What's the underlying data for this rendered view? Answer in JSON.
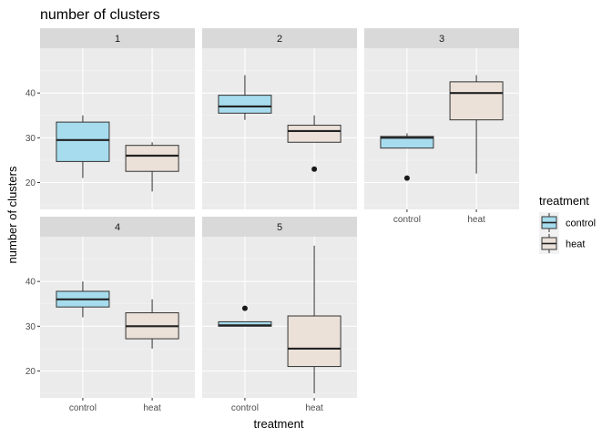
{
  "chart_data": {
    "type": "boxplot",
    "title": "number of clusters",
    "xlabel": "treatment",
    "ylabel": "number of clusters",
    "ylim": [
      14,
      50
    ],
    "yticks": [
      20,
      30,
      40
    ],
    "categories": [
      "control",
      "heat"
    ],
    "colors": {
      "control": "#a6dced",
      "heat": "#ebe1d9"
    },
    "legend": {
      "title": "treatment",
      "position": "right",
      "entries": [
        "control",
        "heat"
      ]
    },
    "facets": [
      {
        "label": "1",
        "boxes": [
          {
            "group": "control",
            "whisker_low": 21,
            "q1": 24.7,
            "median": 29.5,
            "q3": 33.5,
            "whisker_high": 35,
            "outliers": []
          },
          {
            "group": "heat",
            "whisker_low": 18,
            "q1": 22.5,
            "median": 26,
            "q3": 28.3,
            "whisker_high": 29,
            "outliers": []
          }
        ]
      },
      {
        "label": "2",
        "boxes": [
          {
            "group": "control",
            "whisker_low": 34,
            "q1": 35.5,
            "median": 37,
            "q3": 39.5,
            "whisker_high": 44,
            "outliers": []
          },
          {
            "group": "heat",
            "whisker_low": 29,
            "q1": 29,
            "median": 31.5,
            "q3": 32.8,
            "whisker_high": 35,
            "outliers": [
              23
            ]
          }
        ]
      },
      {
        "label": "3",
        "boxes": [
          {
            "group": "control",
            "whisker_low": 27.7,
            "q1": 27.7,
            "median": 30,
            "q3": 30.3,
            "whisker_high": 31,
            "outliers": [
              21
            ]
          },
          {
            "group": "heat",
            "whisker_low": 22,
            "q1": 34,
            "median": 40,
            "q3": 42.5,
            "whisker_high": 44,
            "outliers": []
          }
        ]
      },
      {
        "label": "4",
        "boxes": [
          {
            "group": "control",
            "whisker_low": 32,
            "q1": 34.3,
            "median": 36,
            "q3": 37.8,
            "whisker_high": 40,
            "outliers": []
          },
          {
            "group": "heat",
            "whisker_low": 25,
            "q1": 27.2,
            "median": 30,
            "q3": 33,
            "whisker_high": 36,
            "outliers": []
          }
        ]
      },
      {
        "label": "5",
        "boxes": [
          {
            "group": "control",
            "whisker_low": 30,
            "q1": 30,
            "median": 30.2,
            "q3": 31,
            "whisker_high": 31,
            "outliers": [
              34
            ]
          },
          {
            "group": "heat",
            "whisker_low": 15,
            "q1": 21,
            "median": 25,
            "q3": 32.3,
            "whisker_high": 48,
            "outliers": []
          }
        ]
      }
    ]
  }
}
